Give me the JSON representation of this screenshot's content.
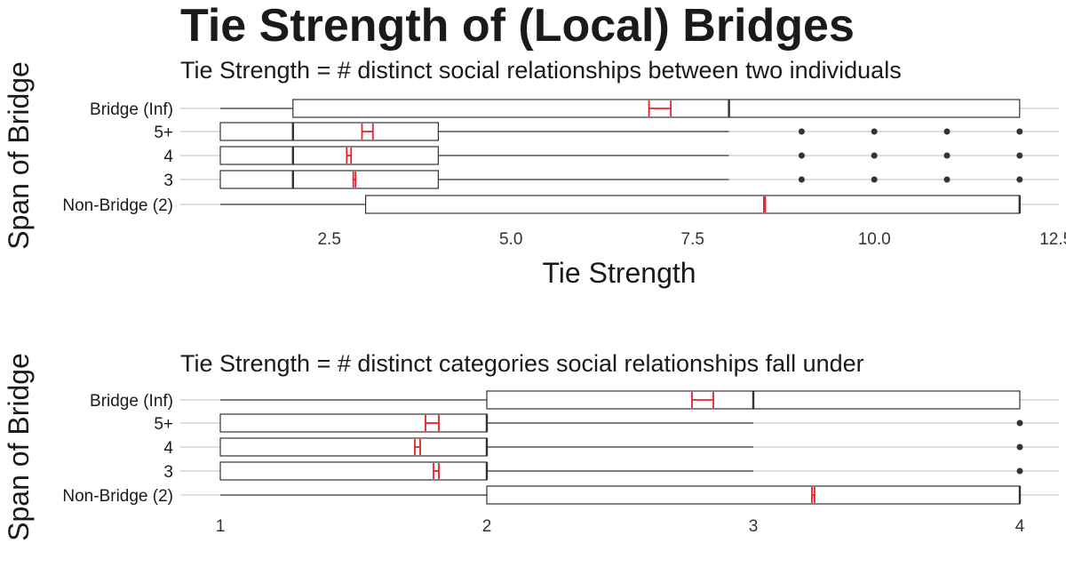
{
  "title": "Tie Strength of (Local) Bridges",
  "colors": {
    "box": "#333333",
    "grid": "#bdbdbd",
    "mean": "#e8222a",
    "outlier": "#333333"
  },
  "chart_data": [
    {
      "type": "boxplot",
      "subtitle": "Tie Strength = # distinct social relationships between two individuals",
      "xlabel": "Tie Strength",
      "ylabel": "Span of Bridge",
      "xlim": [
        1,
        12.5
      ],
      "xticks": [
        2.5,
        5.0,
        7.5,
        10.0,
        "12.5"
      ],
      "xtick_labels": [
        "2.5",
        "5.0",
        "7.5",
        "10.0",
        "12.5"
      ],
      "categories": [
        "Bridge (Inf)",
        "5+",
        "4",
        "3",
        "Non-Bridge (2)"
      ],
      "boxes": [
        {
          "category": "Bridge (Inf)",
          "whisker_low": 1,
          "q1": 2,
          "median": 8,
          "q3": 12,
          "whisker_high": 12,
          "mean_low": 6.9,
          "mean_high": 7.2,
          "outliers": []
        },
        {
          "category": "5+",
          "whisker_low": 1,
          "q1": 1,
          "median": 2,
          "q3": 4,
          "whisker_high": 8,
          "mean_low": 2.95,
          "mean_high": 3.1,
          "outliers": [
            9,
            10,
            11,
            12
          ]
        },
        {
          "category": "4",
          "whisker_low": 1,
          "q1": 1,
          "median": 2,
          "q3": 4,
          "whisker_high": 8,
          "mean_low": 2.74,
          "mean_high": 2.8,
          "outliers": [
            9,
            10,
            11,
            12
          ]
        },
        {
          "category": "3",
          "whisker_low": 1,
          "q1": 1,
          "median": 2,
          "q3": 4,
          "whisker_high": 8,
          "mean_low": 2.83,
          "mean_high": 2.86,
          "outliers": [
            9,
            10,
            11,
            12
          ]
        },
        {
          "category": "Non-Bridge (2)",
          "whisker_low": 1,
          "q1": 3,
          "median": 12,
          "q3": 12,
          "whisker_high": 12,
          "mean_low": 8.48,
          "mean_high": 8.5,
          "outliers": []
        }
      ],
      "grid": true
    },
    {
      "type": "boxplot",
      "subtitle": "Tie Strength = # distinct categories social relationships fall under",
      "xlabel": "",
      "ylabel": "Span of Bridge",
      "xlim": [
        1,
        4
      ],
      "xticks": [
        1,
        2,
        3,
        4
      ],
      "xtick_labels": [
        "1",
        "2",
        "3",
        "4"
      ],
      "categories": [
        "Bridge (Inf)",
        "5+",
        "4",
        "3",
        "Non-Bridge (2)"
      ],
      "boxes": [
        {
          "category": "Bridge (Inf)",
          "whisker_low": 1,
          "q1": 2,
          "median": 3,
          "q3": 4,
          "whisker_high": 4,
          "mean_low": 2.77,
          "mean_high": 2.85,
          "outliers": []
        },
        {
          "category": "5+",
          "whisker_low": 1,
          "q1": 1,
          "median": 2,
          "q3": 2,
          "whisker_high": 3,
          "mean_low": 1.77,
          "mean_high": 1.82,
          "outliers": [
            4
          ]
        },
        {
          "category": "4",
          "whisker_low": 1,
          "q1": 1,
          "median": 2,
          "q3": 2,
          "whisker_high": 3,
          "mean_low": 1.73,
          "mean_high": 1.75,
          "outliers": [
            4
          ]
        },
        {
          "category": "3",
          "whisker_low": 1,
          "q1": 1,
          "median": 2,
          "q3": 2,
          "whisker_high": 3,
          "mean_low": 1.8,
          "mean_high": 1.82,
          "outliers": [
            4
          ]
        },
        {
          "category": "Non-Bridge (2)",
          "whisker_low": 1,
          "q1": 2,
          "median": 4,
          "q3": 4,
          "whisker_high": 4,
          "mean_low": 3.22,
          "mean_high": 3.23,
          "outliers": []
        }
      ],
      "grid": true
    }
  ]
}
